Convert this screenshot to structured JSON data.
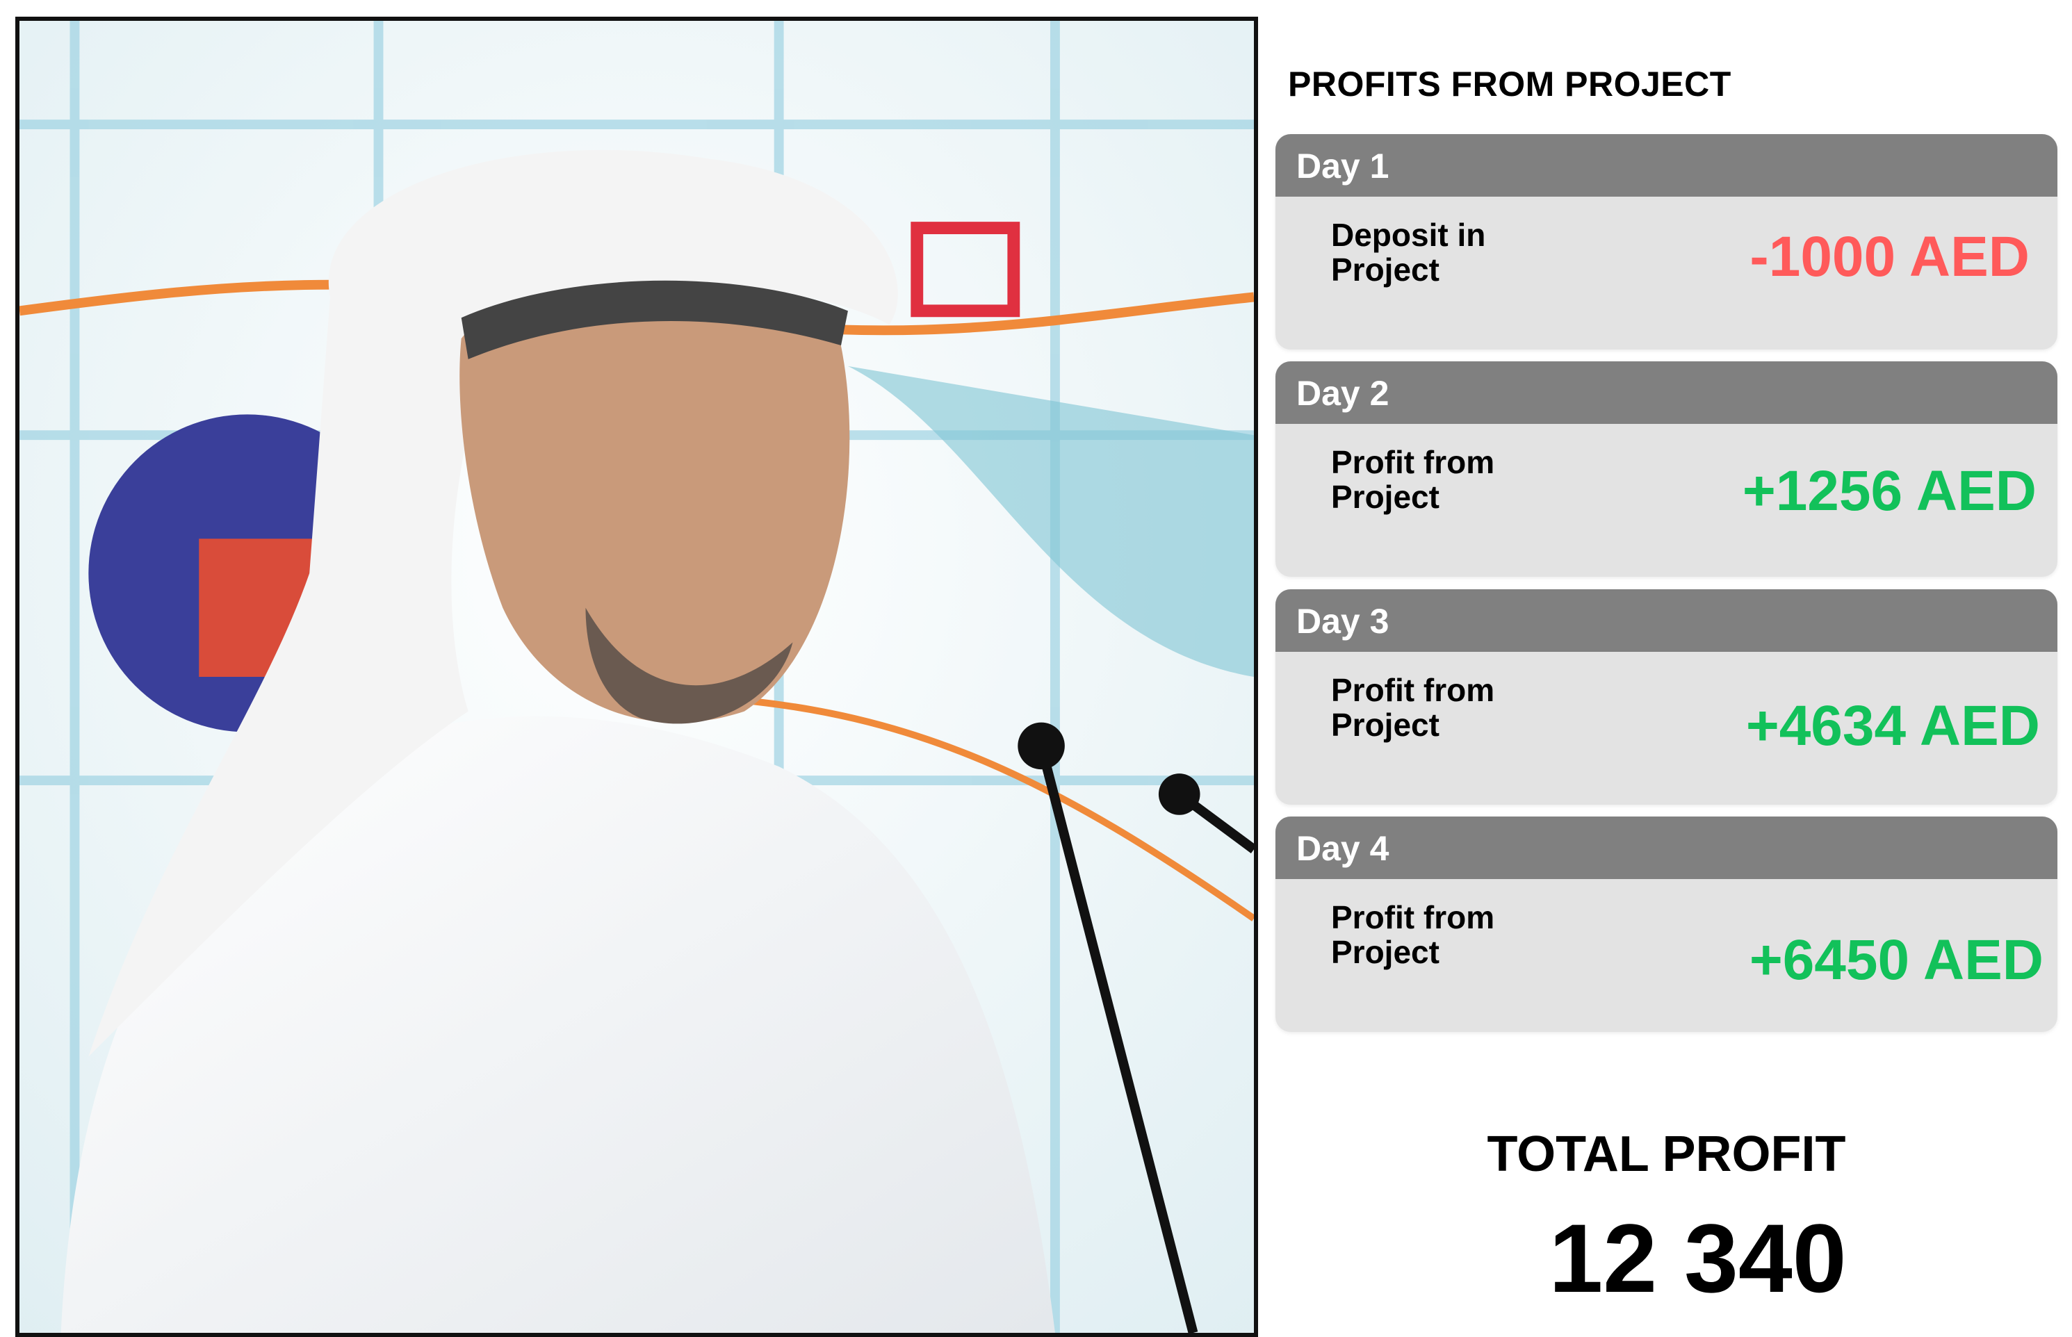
{
  "photo": {
    "description_icon": "speaker-photo"
  },
  "panel": {
    "title": "PROFITS FROM PROJECT",
    "days": [
      {
        "label": "Day 1",
        "description": "Deposit in Project",
        "amount": "-1000 AED",
        "type": "negative"
      },
      {
        "label": "Day 2",
        "description": "Profit from Project",
        "amount": "+1256 AED",
        "type": "positive"
      },
      {
        "label": "Day 3",
        "description": "Profit from Project",
        "amount": "+4634 AED",
        "type": "positive"
      },
      {
        "label": "Day 4",
        "description": "Profit from Project",
        "amount": "+6450 AED",
        "type": "positive"
      }
    ],
    "total_label": "TOTAL PROFIT",
    "total_value": "12 340"
  },
  "colors": {
    "negative": "#ff5a5a",
    "positive": "#12c15a",
    "header": "#808080",
    "card": "#e3e3e3"
  }
}
